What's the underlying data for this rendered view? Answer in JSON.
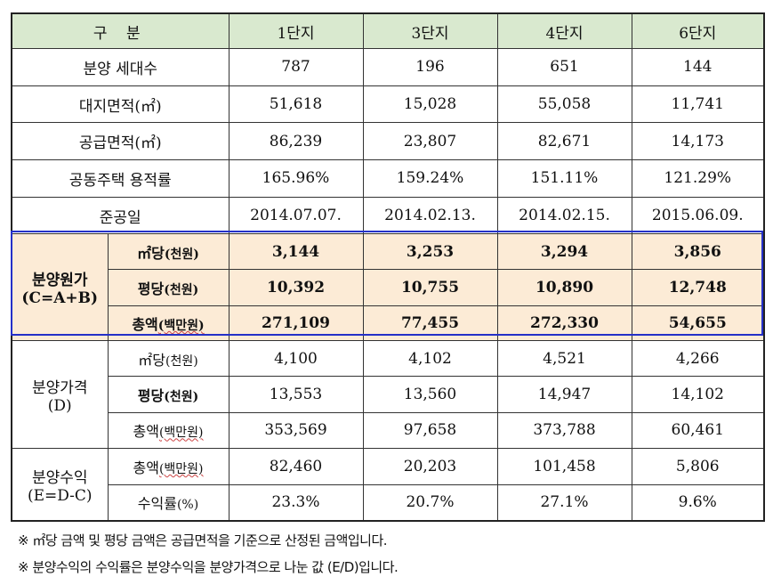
{
  "header": {
    "category": "구 분",
    "col1": "1단지",
    "col2": "3단지",
    "col3": "4단지",
    "col4": "6단지"
  },
  "basic_rows": [
    {
      "label": "분양 세대수",
      "values": [
        "787",
        "196",
        "651",
        "144"
      ]
    },
    {
      "label": "대지면적(㎡)",
      "values": [
        "51,618",
        "15,028",
        "55,058",
        "11,741"
      ]
    },
    {
      "label": "공급면적(㎡)",
      "values": [
        "86,239",
        "23,807",
        "82,671",
        "14,173"
      ]
    },
    {
      "label": "공동주택 용적률",
      "values": [
        "165.96%",
        "159.24%",
        "151.11%",
        "121.29%"
      ]
    },
    {
      "label": "준공일",
      "values": [
        "2014.07.07.",
        "2014.02.13.",
        "2014.02.15.",
        "2015.06.09."
      ]
    }
  ],
  "cost_group": {
    "label_line1": "분양원가",
    "label_line2": "(C=A+B)",
    "rows": [
      {
        "label_main": "㎡당",
        "label_unit": "(천원)",
        "values": [
          "3,144",
          "3,253",
          "3,294",
          "3,856"
        ]
      },
      {
        "label_main": "평당",
        "label_unit": "(천원)",
        "values": [
          "10,392",
          "10,755",
          "10,890",
          "12,748"
        ]
      },
      {
        "label_main": "총액",
        "label_unit": "(백만원)",
        "values": [
          "271,109",
          "77,455",
          "272,330",
          "54,655"
        ]
      }
    ]
  },
  "price_group": {
    "label_line1": "분양가격",
    "label_line2": "(D)",
    "rows": [
      {
        "label_main": "㎡당",
        "label_unit": "(천원)",
        "values": [
          "4,100",
          "4,102",
          "4,521",
          "4,266"
        ]
      },
      {
        "label_main": "평당",
        "label_unit": "(천원)",
        "values": [
          "13,553",
          "13,560",
          "14,947",
          "14,102"
        ]
      },
      {
        "label_main": "총액",
        "label_unit": "(백만원)",
        "values": [
          "353,569",
          "97,658",
          "373,788",
          "60,461"
        ]
      }
    ]
  },
  "profit_group": {
    "label_line1": "분양수익",
    "label_line2": "(E=D-C)",
    "rows": [
      {
        "label_main": "총액",
        "label_unit": "(백만원)",
        "values": [
          "82,460",
          "20,203",
          "101,458",
          "5,806"
        ]
      },
      {
        "label_main": "수익률",
        "label_unit": "(%)",
        "values": [
          "23.3%",
          "20.7%",
          "27.1%",
          "9.6%"
        ]
      }
    ]
  },
  "notes": [
    "※ ㎡당 금액 및 평당 금액은 공급면적을 기준으로 산정된 금액입니다.",
    "※ 분양수익의 수익률은 분양수익을 분양가격으로 나눈 값 (E/D)입니다."
  ],
  "colors": {
    "header_bg": "#d9e9cf",
    "highlight_bg": "#fcebd6",
    "frame_blue": "#2430c8"
  }
}
